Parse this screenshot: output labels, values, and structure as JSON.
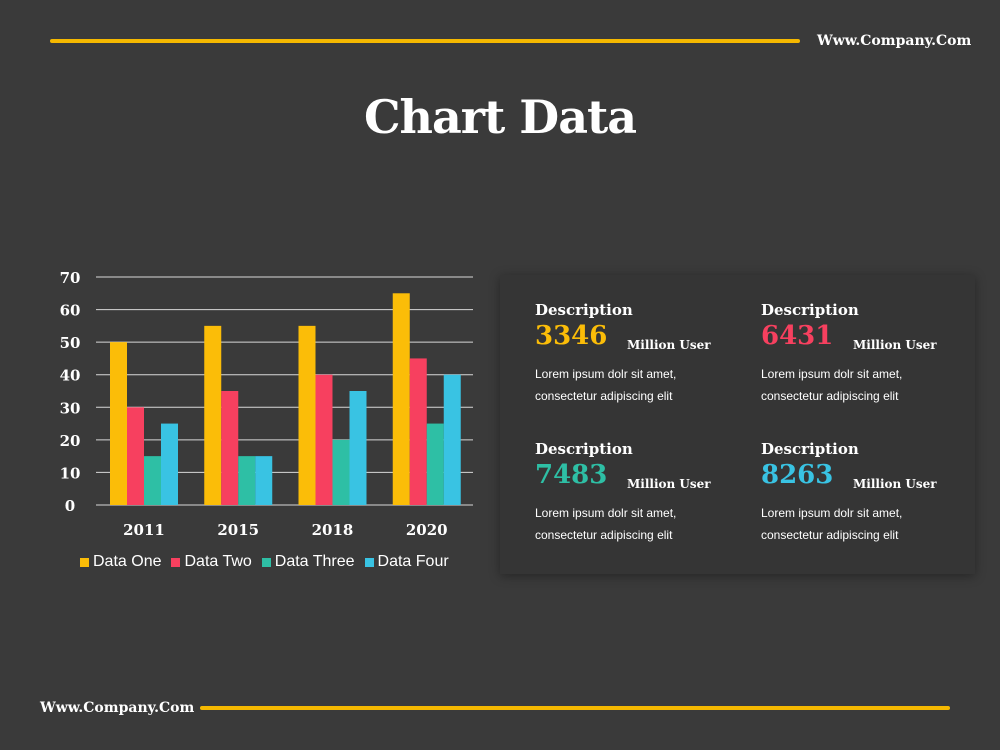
{
  "header": {
    "url": "Www.Company.Com"
  },
  "footer": {
    "url": "Www.Company.Com"
  },
  "title": "Chart Data",
  "colors": {
    "accent": "#f5b800",
    "data_one": "#fbbd08",
    "data_two": "#f7405f",
    "data_three": "#2ebfa5",
    "data_four": "#39c3e3"
  },
  "chart_data": {
    "type": "bar",
    "categories": [
      "2011",
      "2015",
      "2018",
      "2020"
    ],
    "series": [
      {
        "name": "Data One",
        "color": "#fbbd08",
        "values": [
          50,
          55,
          55,
          65
        ]
      },
      {
        "name": "Data Two",
        "color": "#f7405f",
        "values": [
          30,
          35,
          40,
          45
        ]
      },
      {
        "name": "Data Three",
        "color": "#2ebfa5",
        "values": [
          15,
          15,
          20,
          25
        ]
      },
      {
        "name": "Data Four",
        "color": "#39c3e3",
        "values": [
          25,
          15,
          35,
          40
        ]
      }
    ],
    "yticks": [
      "0",
      "10",
      "20",
      "30",
      "40",
      "50",
      "60",
      "70"
    ],
    "ylim": [
      0,
      70
    ],
    "grid": true,
    "legend_position": "bottom"
  },
  "cards": [
    {
      "heading": "Description",
      "value": "3346",
      "unit": "Million User",
      "color": "#fbbd08",
      "desc_line1": "Lorem ipsum dolr sit amet,",
      "desc_line2": "consectetur adipiscing elit"
    },
    {
      "heading": "Description",
      "value": "6431",
      "unit": "Million User",
      "color": "#f7405f",
      "desc_line1": "Lorem ipsum dolr sit amet,",
      "desc_line2": "consectetur adipiscing elit"
    },
    {
      "heading": "Description",
      "value": "7483",
      "unit": "Million User",
      "color": "#2ebfa5",
      "desc_line1": "Lorem ipsum dolr sit amet,",
      "desc_line2": "consectetur adipiscing elit"
    },
    {
      "heading": "Description",
      "value": "8263",
      "unit": "Million User",
      "color": "#39c3e3",
      "desc_line1": "Lorem ipsum dolr sit amet,",
      "desc_line2": "consectetur adipiscing elit"
    }
  ]
}
